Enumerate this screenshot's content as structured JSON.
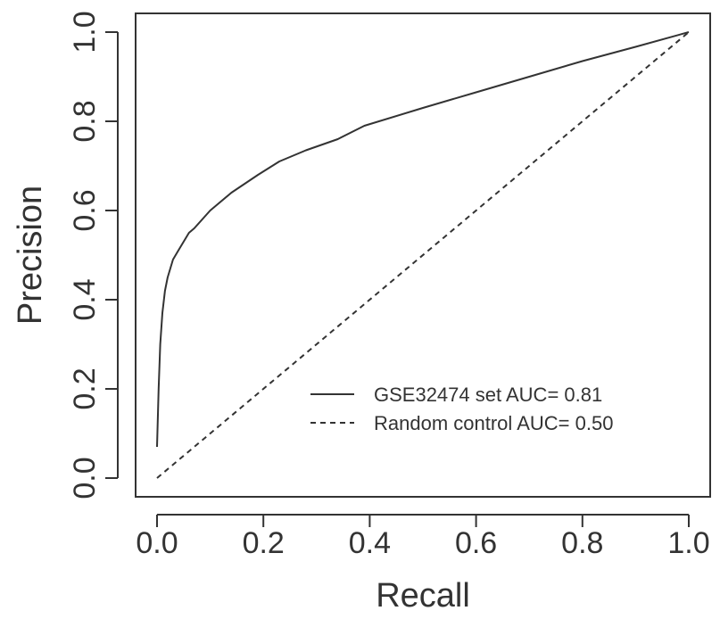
{
  "chart_data": {
    "type": "line",
    "title": "",
    "xlabel": "Recall",
    "ylabel": "Precision",
    "xlim": [
      0,
      1
    ],
    "ylim": [
      0,
      1
    ],
    "xticks": [
      "0.0",
      "0.2",
      "0.4",
      "0.6",
      "0.8",
      "1.0"
    ],
    "yticks": [
      "0.0",
      "0.2",
      "0.4",
      "0.6",
      "0.8",
      "1.0"
    ],
    "grid": false,
    "legend_position": "bottom-right",
    "series": [
      {
        "name": "GSE32474 set AUC= 0.81",
        "style": "solid",
        "color": "#333333",
        "x": [
          0.0,
          0.003,
          0.006,
          0.01,
          0.015,
          0.02,
          0.03,
          0.04,
          0.05,
          0.06,
          0.07,
          0.1,
          0.14,
          0.19,
          0.23,
          0.28,
          0.34,
          0.39,
          0.5,
          0.6,
          0.7,
          0.8,
          0.9,
          1.0
        ],
        "y": [
          0.07,
          0.2,
          0.3,
          0.37,
          0.42,
          0.45,
          0.49,
          0.51,
          0.53,
          0.55,
          0.56,
          0.6,
          0.64,
          0.68,
          0.71,
          0.735,
          0.76,
          0.79,
          0.83,
          0.865,
          0.9,
          0.935,
          0.967,
          1.0
        ]
      },
      {
        "name": "Random control AUC= 0.50",
        "style": "dashed",
        "color": "#333333",
        "x": [
          0.0,
          1.0
        ],
        "y": [
          0.0,
          1.0
        ]
      }
    ]
  }
}
